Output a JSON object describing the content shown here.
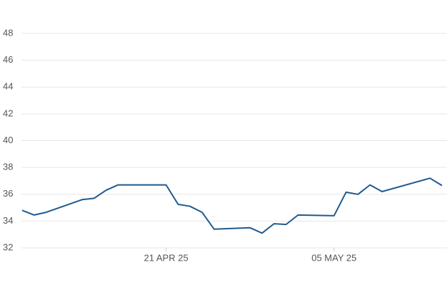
{
  "chart_data": {
    "type": "line",
    "x": [
      "2025-04-09",
      "2025-04-10",
      "2025-04-11",
      "2025-04-14",
      "2025-04-15",
      "2025-04-16",
      "2025-04-17",
      "2025-04-21",
      "2025-04-22",
      "2025-04-23",
      "2025-04-24",
      "2025-04-25",
      "2025-04-28",
      "2025-04-29",
      "2025-04-30",
      "2025-05-01",
      "2025-05-02",
      "2025-05-05",
      "2025-05-06",
      "2025-05-07",
      "2025-05-08",
      "2025-05-09",
      "2025-05-12",
      "2025-05-13",
      "2025-05-14"
    ],
    "series": [
      {
        "color": "#1f5a8f",
        "values": [
          34.8,
          34.45,
          34.65,
          35.6,
          35.7,
          36.3,
          36.7,
          36.7,
          35.25,
          35.1,
          34.65,
          33.4,
          33.5,
          33.1,
          33.8,
          33.75,
          34.45,
          34.4,
          36.15,
          36.0,
          36.7,
          36.2,
          36.95,
          37.2,
          36.65
        ]
      }
    ],
    "xlim": [
      "2025-04-09",
      "2025-05-14"
    ],
    "xticks": [
      {
        "value": "2025-04-21",
        "label": "21 APR 25"
      },
      {
        "value": "2025-05-05",
        "label": "05 MAY 25"
      }
    ],
    "ylim": [
      32,
      48
    ],
    "yticks": [
      32,
      34,
      36,
      38,
      40,
      42,
      44,
      46,
      48
    ],
    "grid": true
  }
}
